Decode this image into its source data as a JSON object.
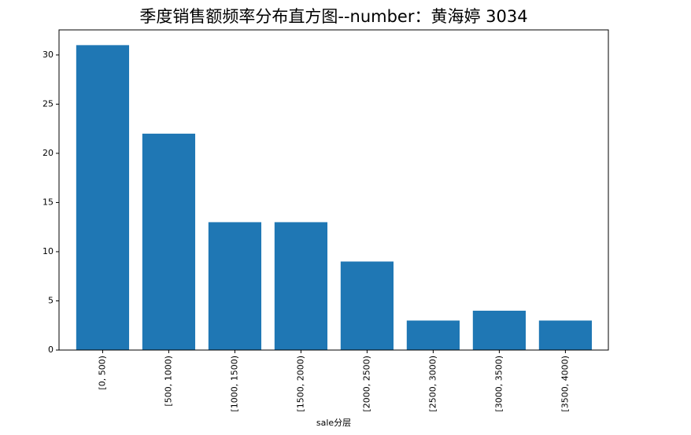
{
  "chart_data": {
    "type": "bar",
    "title": "季度销售额频率分布直方图--number：黄海婷 3034",
    "x_label": "sale分层",
    "categories": [
      "[0, 500)",
      "[500, 1000)",
      "[1000, 1500)",
      "[1500, 2000)",
      "[2000, 2500)",
      "[2500, 3000)",
      "[3000, 3500)",
      "[3500, 4000)"
    ],
    "values": [
      31,
      22,
      13,
      13,
      9,
      3,
      4,
      3
    ],
    "color": "#1f77b4",
    "ylim": [
      0,
      32.55
    ],
    "yticks": [
      0,
      5,
      10,
      15,
      20,
      25,
      30
    ]
  }
}
